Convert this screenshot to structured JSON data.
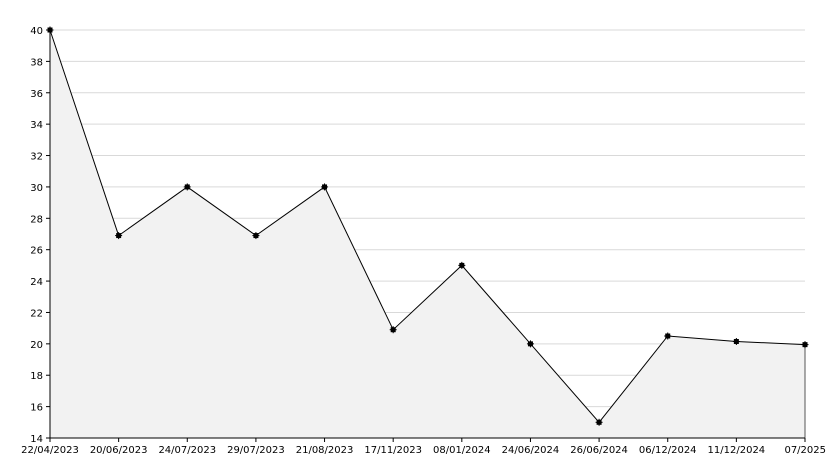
{
  "chart_data": {
    "type": "area",
    "title": "",
    "xlabel": "",
    "ylabel": "",
    "categories": [
      "22/04/2023",
      "20/06/2023",
      "24/07/2023",
      "29/07/2023",
      "21/08/2023",
      "17/11/2023",
      "08/01/2024",
      "24/06/2024",
      "26/06/2024",
      "06/12/2024",
      "11/12/2024",
      "07/2025"
    ],
    "series": [
      {
        "values": [
          40,
          26.9,
          30,
          26.9,
          30,
          20.9,
          25,
          20,
          15,
          20.5,
          20.15,
          19.95
        ]
      }
    ],
    "ylim": [
      14,
      40
    ],
    "yticks": [
      14,
      16,
      18,
      20,
      22,
      24,
      26,
      28,
      30,
      32,
      34,
      36,
      38,
      40
    ],
    "grid": true,
    "legend": "none",
    "colors": {
      "line": "#000000",
      "fill": "#f2f2f2",
      "grid": "#d9d9d9",
      "axis": "#000000",
      "marker": "#000000"
    }
  }
}
